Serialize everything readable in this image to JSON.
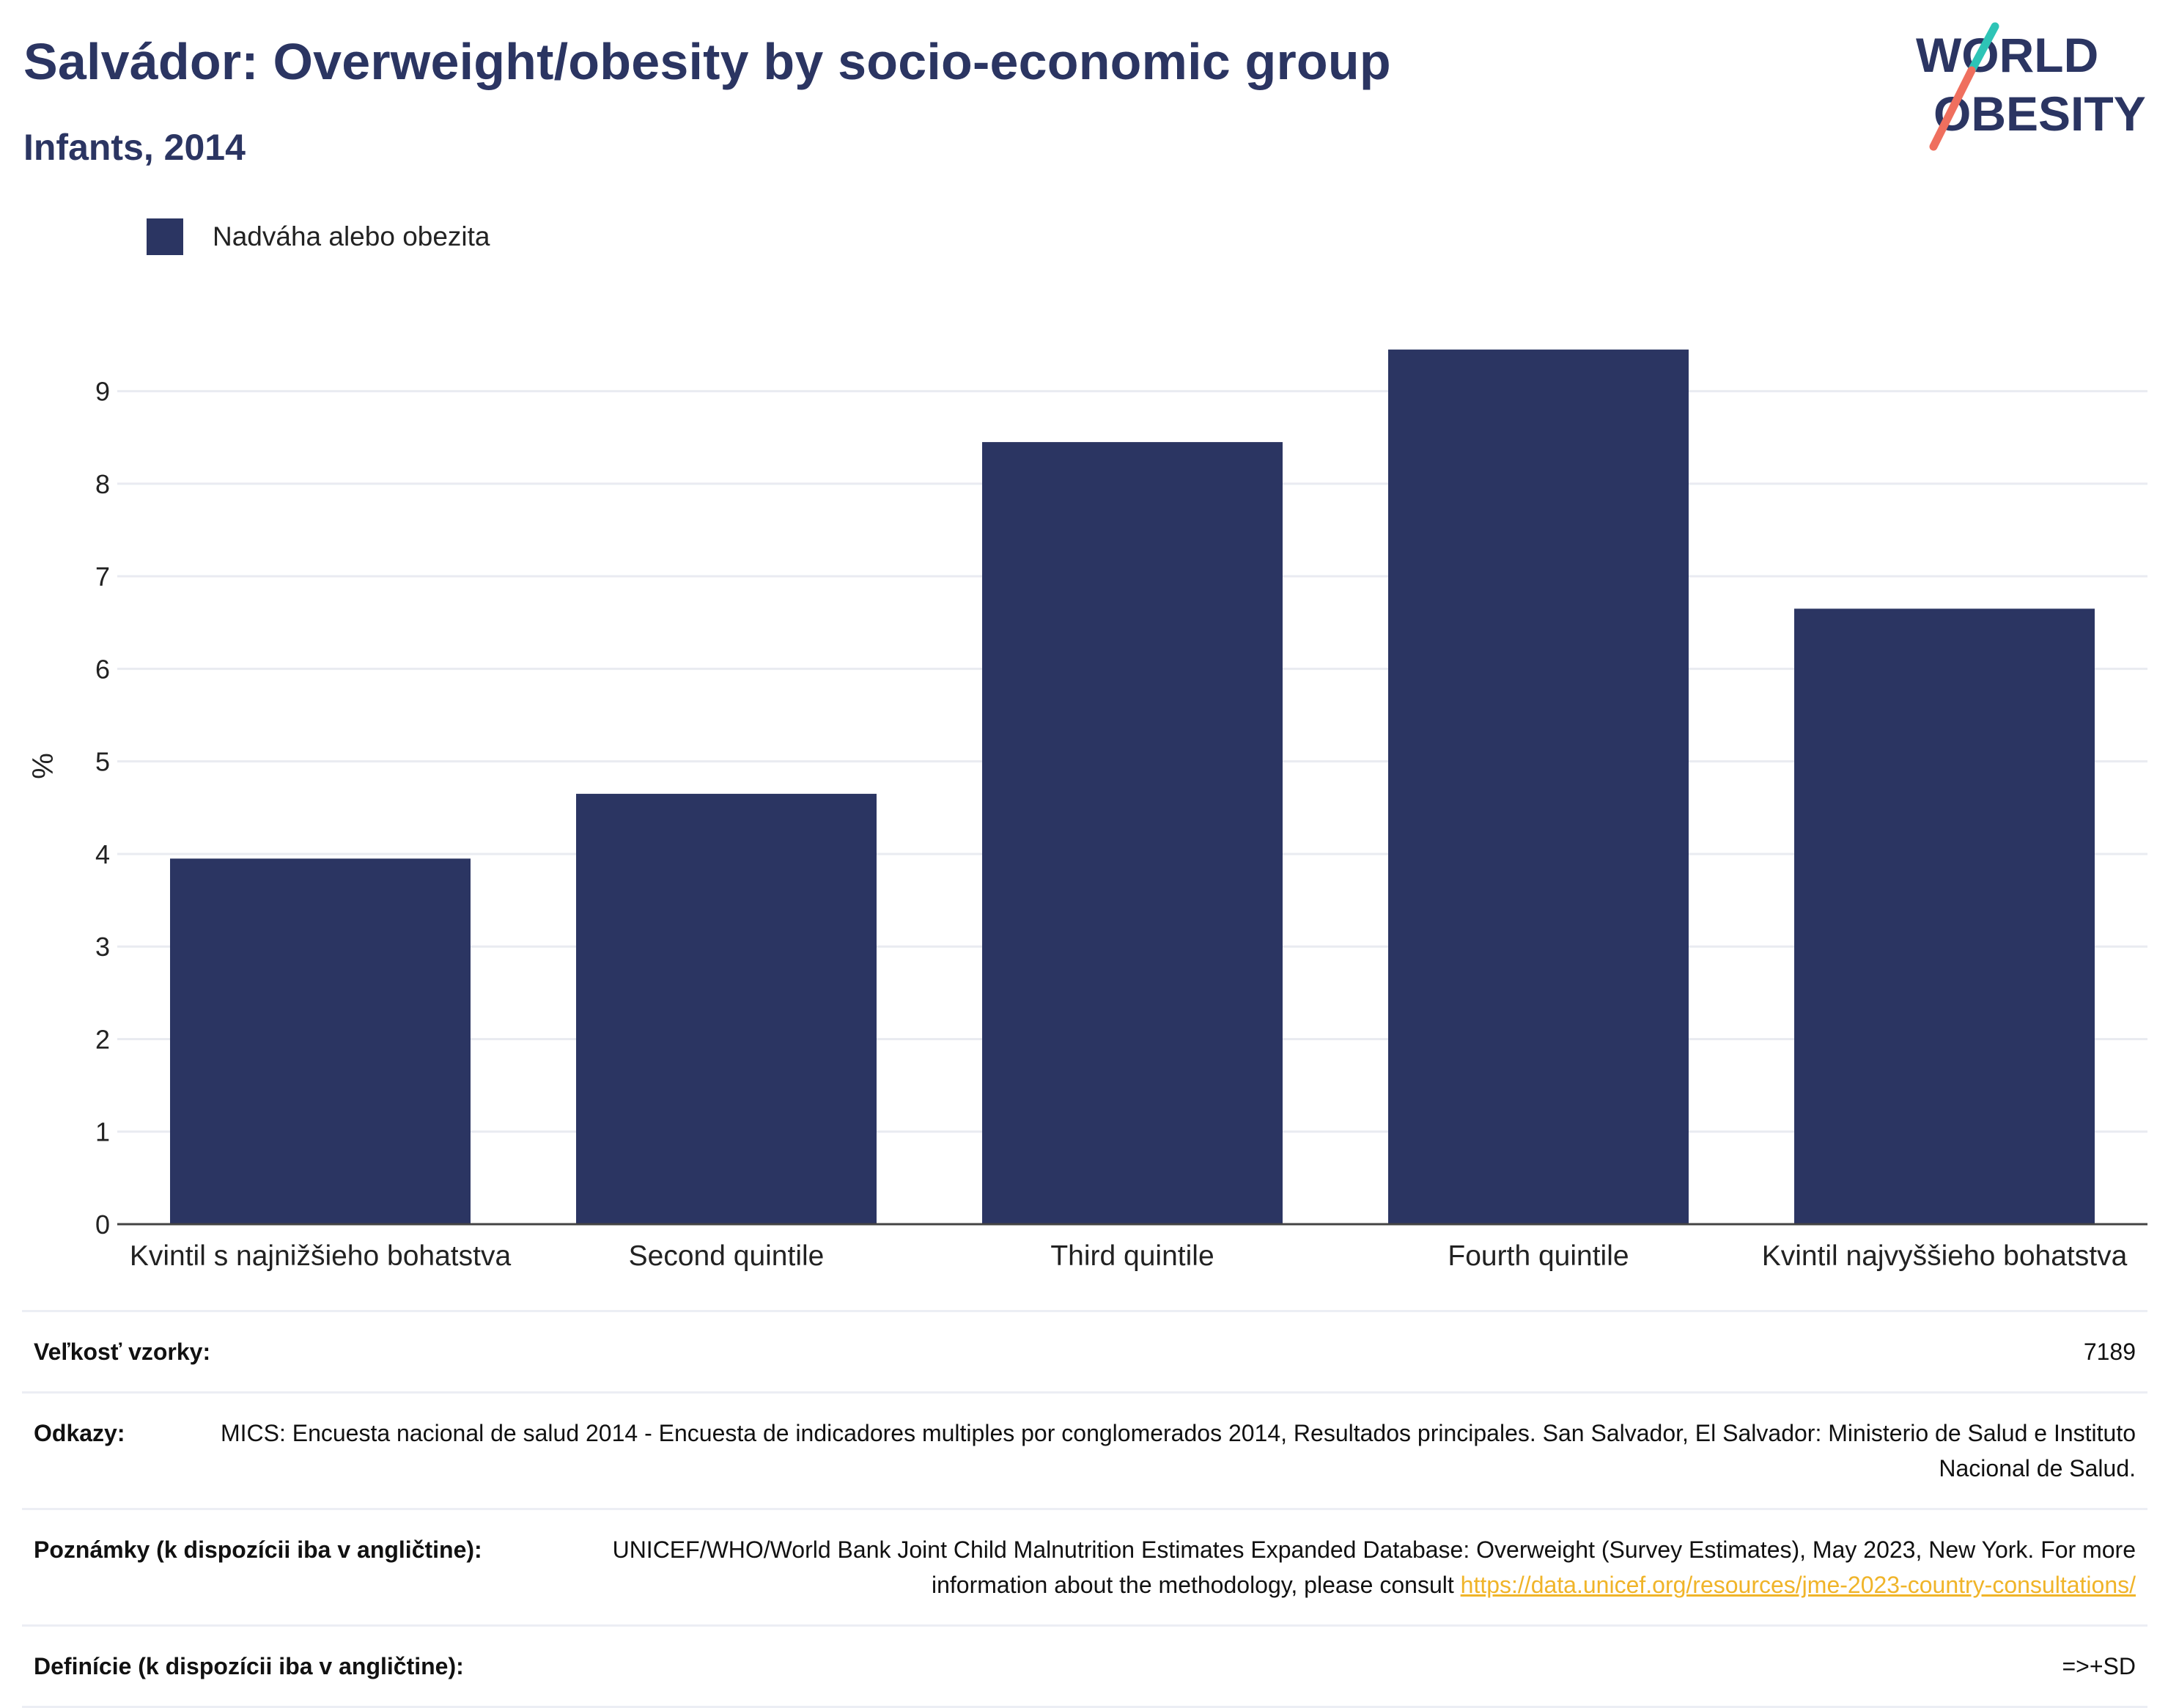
{
  "header": {
    "title": "Salvádor: Overweight/obesity by socio-economic group",
    "subtitle": "Infants, 2014"
  },
  "logo": {
    "line1": "WORLD",
    "line2": "OBESITY",
    "colors": {
      "navy": "#2b3562",
      "teal": "#2ec4b6",
      "coral": "#ef6f5e"
    }
  },
  "legend": {
    "label": "Nadváha alebo obezita",
    "color": "#2b3562"
  },
  "chart_data": {
    "type": "bar",
    "categories": [
      "Kvintil s najnižšieho bohatstva",
      "Second quintile",
      "Third quintile",
      "Fourth quintile",
      "Kvintil najvyššieho bohatstva"
    ],
    "series": [
      {
        "name": "Nadváha alebo obezita",
        "values": [
          3.95,
          4.65,
          8.45,
          9.45,
          6.65
        ],
        "color": "#2b3562"
      }
    ],
    "ylabel": "%",
    "ylim": [
      0,
      9.9
    ],
    "yticks": [
      0,
      1,
      2,
      3,
      4,
      5,
      6,
      7,
      8,
      9
    ],
    "grid": true,
    "legend_position": "top-left"
  },
  "info": {
    "sample_label": "Veľkosť vzorky:",
    "sample_value": "7189",
    "refs_label": "Odkazy:",
    "refs_value": "MICS: Encuesta nacional de salud 2014 - Encuesta de indicadores multiples por conglomerados 2014, Resultados principales. San Salvador, El Salvador: Ministerio de Salud e Instituto Nacional de Salud.",
    "notes_label": "Poznámky (k dispozícii iba v angličtine):",
    "notes_text": "UNICEF/WHO/World Bank Joint Child Malnutrition Estimates Expanded Database: Overweight (Survey Estimates), May 2023, New York. For more information about the methodology, please consult",
    "notes_link": "https://data.unicef.org/resources/jme-2023-country-consultations/",
    "defs_label": "Definície (k dispozícii iba v angličtine):",
    "defs_value": "=>+SD"
  }
}
